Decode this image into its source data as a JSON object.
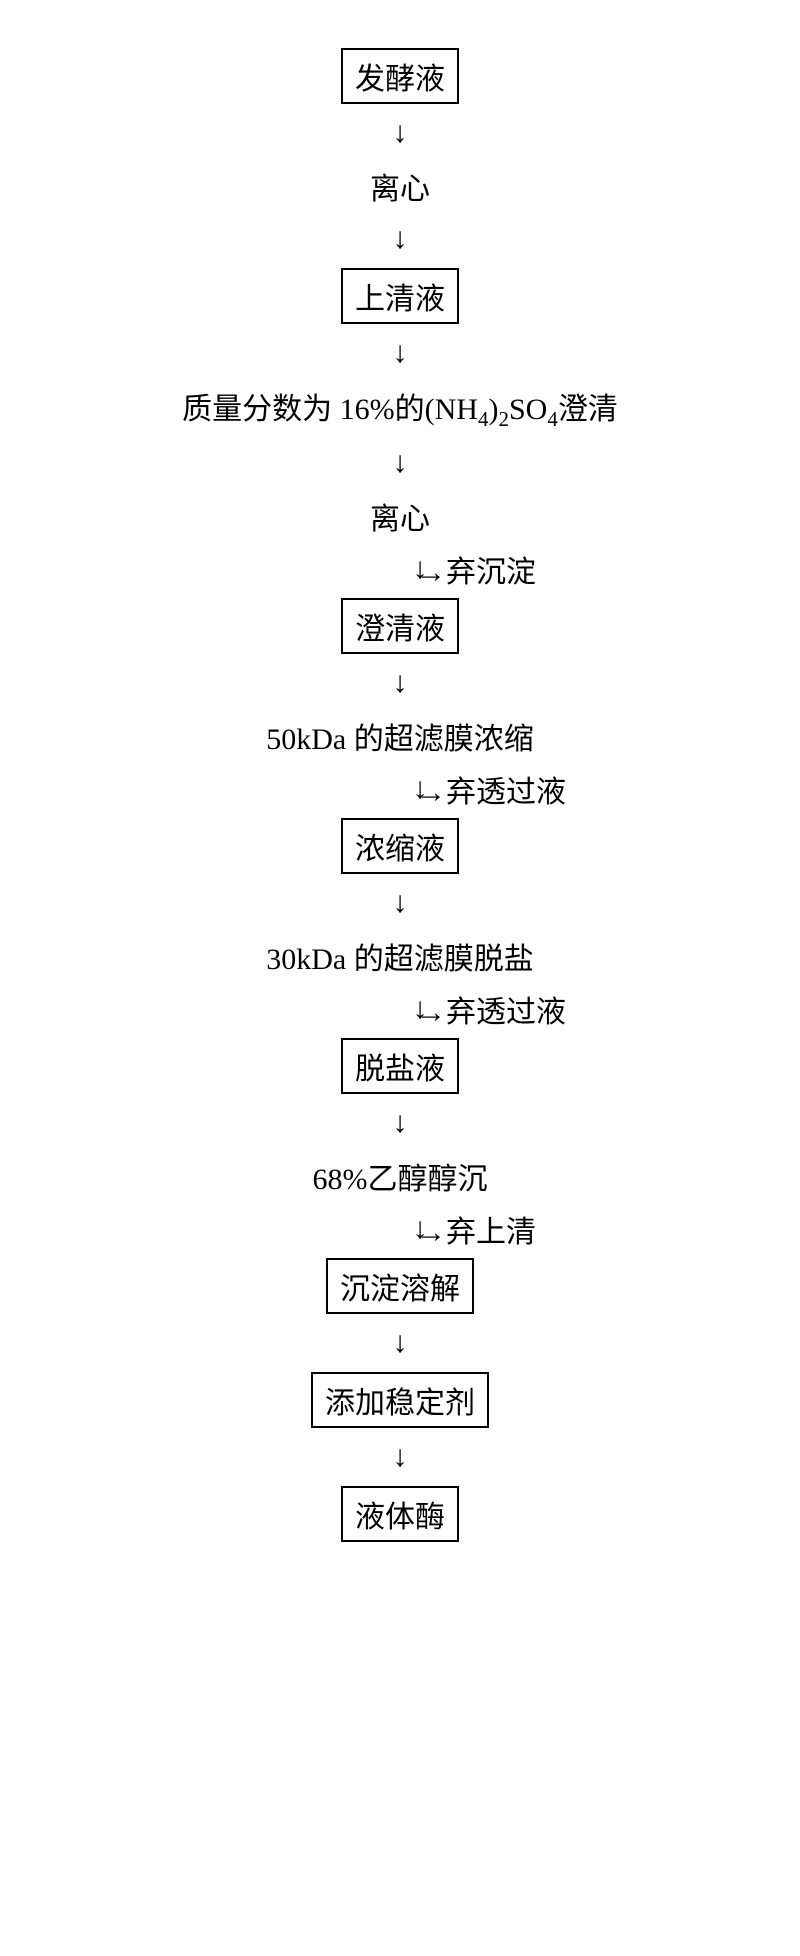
{
  "flowchart": {
    "type": "flowchart",
    "direction": "vertical",
    "background_color": "#ffffff",
    "text_color": "#000000",
    "border_color": "#000000",
    "font_size_pt": 30,
    "font_family": "SimSun, serif",
    "arrow_glyph": "↓",
    "branch_arrow_glyph": "→",
    "steps": [
      {
        "id": "n0",
        "label": "发酵液",
        "boxed": true
      },
      {
        "id": "a0",
        "type": "arrow"
      },
      {
        "id": "n1",
        "label": "离心",
        "boxed": false
      },
      {
        "id": "a1",
        "type": "arrow"
      },
      {
        "id": "n2",
        "label": "上清液",
        "boxed": true
      },
      {
        "id": "a2",
        "type": "arrow"
      },
      {
        "id": "n3",
        "label_html": "质量分数为 16%的(NH<sub>4</sub>)<sub>2</sub>SO<sub>4</sub>澄清",
        "label_plain": "质量分数为 16%的(NH4)2SO4澄清",
        "boxed": false
      },
      {
        "id": "a3",
        "type": "arrow"
      },
      {
        "id": "n4",
        "label": "离心",
        "boxed": false
      },
      {
        "id": "a4",
        "type": "arrow_branch",
        "branch_label": "弃沉淀"
      },
      {
        "id": "n5",
        "label": "澄清液",
        "boxed": true
      },
      {
        "id": "a5",
        "type": "arrow"
      },
      {
        "id": "n6",
        "label": "50kDa 的超滤膜浓缩",
        "boxed": false
      },
      {
        "id": "a6",
        "type": "arrow_branch",
        "branch_label": "弃透过液"
      },
      {
        "id": "n7",
        "label": "浓缩液",
        "boxed": true
      },
      {
        "id": "a7",
        "type": "arrow"
      },
      {
        "id": "n8",
        "label": "30kDa 的超滤膜脱盐",
        "boxed": false
      },
      {
        "id": "a8",
        "type": "arrow_branch",
        "branch_label": "弃透过液"
      },
      {
        "id": "n9",
        "label": "脱盐液",
        "boxed": true
      },
      {
        "id": "a9",
        "type": "arrow"
      },
      {
        "id": "n10",
        "label": "68%乙醇醇沉",
        "boxed": false
      },
      {
        "id": "a10",
        "type": "arrow_branch",
        "branch_label": "弃上清"
      },
      {
        "id": "n11",
        "label": "沉淀溶解",
        "boxed": true
      },
      {
        "id": "a11",
        "type": "arrow"
      },
      {
        "id": "n12",
        "label": "添加稳定剂",
        "boxed": true
      },
      {
        "id": "a12",
        "type": "arrow"
      },
      {
        "id": "n13",
        "label": "液体酶",
        "boxed": true
      }
    ]
  }
}
